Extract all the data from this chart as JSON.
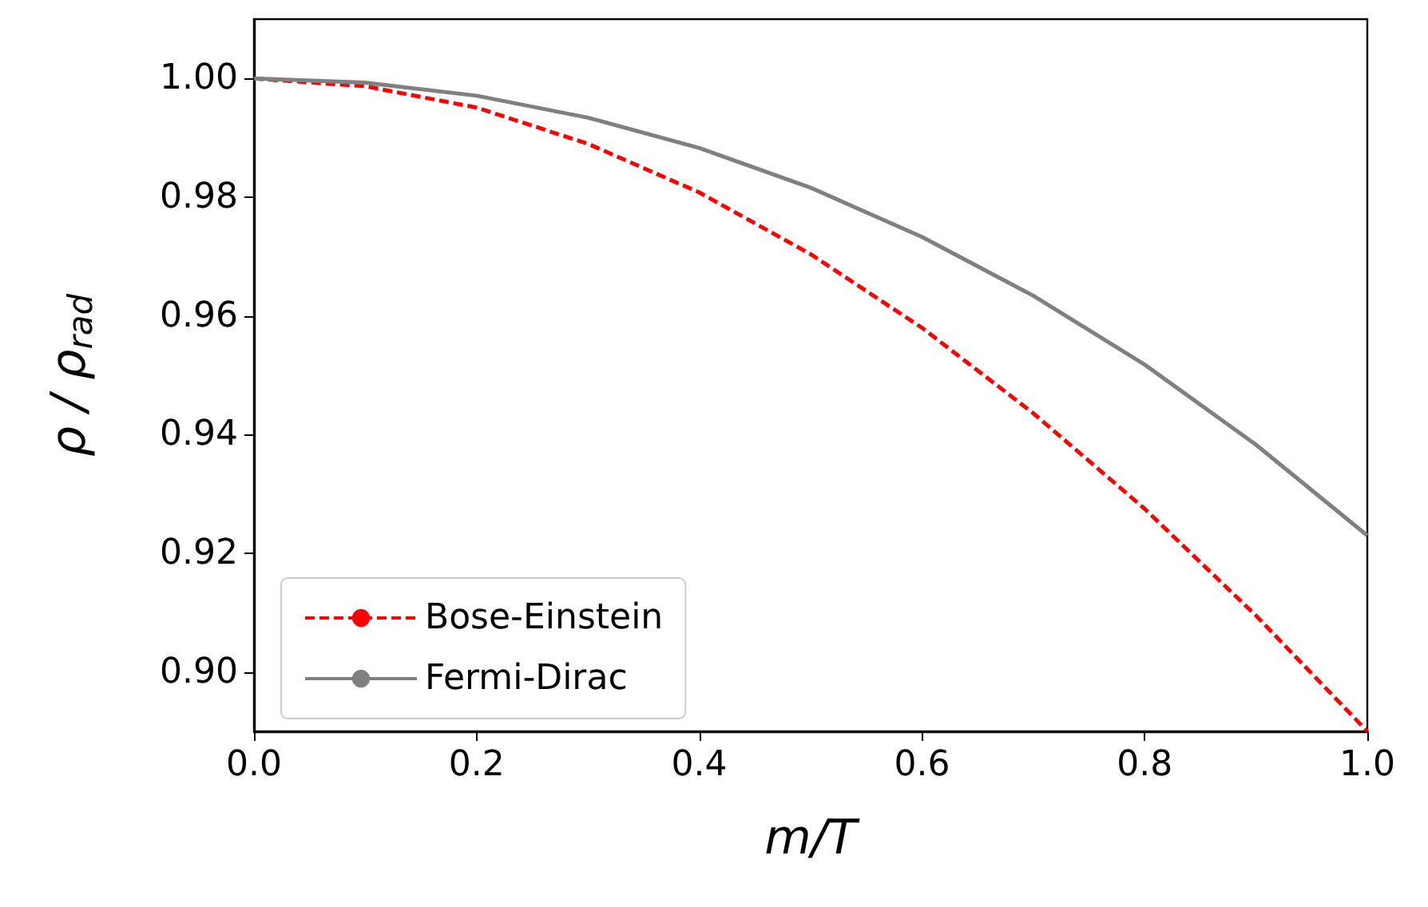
{
  "chart_data": {
    "type": "line",
    "xlabel": "m/T",
    "ylabel": "ρ / ρ$_{rad}$",
    "x": [
      0,
      0.1,
      0.2,
      0.3,
      0.4,
      0.5,
      0.6,
      0.7,
      0.8,
      0.9,
      1.0
    ],
    "series": [
      {
        "name": "Bose-Einstein",
        "color": "#ff0000",
        "line_style": "dashed",
        "values": [
          1.0,
          0.9987,
          0.9951,
          0.989,
          0.9808,
          0.9704,
          0.958,
          0.9436,
          0.9275,
          0.9095,
          0.89
        ]
      },
      {
        "name": "Fermi-Dirac",
        "color": "#808080",
        "line_style": "solid",
        "values": [
          1.0,
          0.9993,
          0.9971,
          0.9934,
          0.9883,
          0.9816,
          0.9733,
          0.9634,
          0.9518,
          0.9383,
          0.923
        ]
      }
    ],
    "xlim": [
      0,
      1
    ],
    "ylim": [
      0.89,
      1.01
    ],
    "xticks": [
      {
        "value": 0,
        "label": "0.0"
      },
      {
        "value": 0.2,
        "label": "0.2"
      },
      {
        "value": 0.4,
        "label": "0.4"
      },
      {
        "value": 0.6,
        "label": "0.6"
      },
      {
        "value": 0.8,
        "label": "0.8"
      },
      {
        "value": 1,
        "label": "1.0"
      }
    ],
    "yticks": [
      {
        "value": 0.9,
        "label": "0.90"
      },
      {
        "value": 0.92,
        "label": "0.92"
      },
      {
        "value": 0.94,
        "label": "0.94"
      },
      {
        "value": 0.96,
        "label": "0.96"
      },
      {
        "value": 0.98,
        "label": "0.98"
      },
      {
        "value": 1,
        "label": "1.00"
      }
    ],
    "grid": false,
    "legend": "bottom left",
    "marker": "none"
  }
}
